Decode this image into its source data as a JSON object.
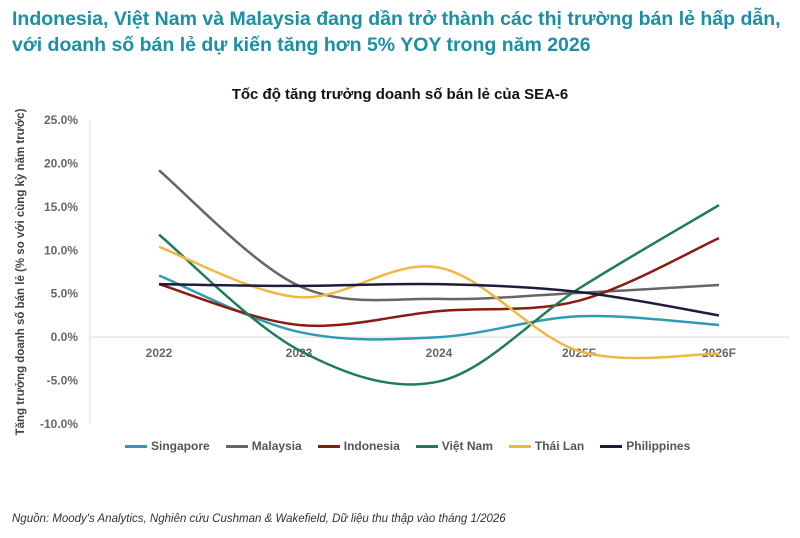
{
  "headline": "Indonesia, Việt Nam và Malaysia đang dần trở thành các thị trường bán lẻ hấp dẫn, với doanh số bán lẻ dự kiến tăng hơn 5% YOY trong năm 2026",
  "source": "Nguồn: Moody's Analytics, Nghiên cứu Cushman & Wakefield, Dữ liệu thu thập vào tháng 1/2026",
  "chart_data": {
    "type": "line",
    "title": "Tốc độ tăng trưởng doanh số bán lẻ của SEA-6",
    "ylabel": "Tăng trưởng doanh số bán lẻ (% so với cùng kỳ năm trước)",
    "xlabel": "",
    "categories": [
      "2022",
      "2023",
      "2024",
      "2025F",
      "2026F"
    ],
    "ylim": [
      -10,
      25
    ],
    "yticks": [
      "25.0%",
      "20.0%",
      "15.0%",
      "10.0%",
      "5.0%",
      "0.0%",
      "-5.0%",
      "-10.0%"
    ],
    "grid": false,
    "smooth": true,
    "legend": "bottom",
    "series": [
      {
        "name": "Singapore",
        "color": "#2e9bb5",
        "values": [
          7.1,
          0.6,
          0.0,
          2.4,
          1.4
        ]
      },
      {
        "name": "Malaysia",
        "color": "#666666",
        "values": [
          19.2,
          5.9,
          4.4,
          5.1,
          6.0
        ]
      },
      {
        "name": "Indonesia",
        "color": "#8b1a10",
        "values": [
          6.1,
          1.4,
          3.0,
          4.2,
          11.4
        ]
      },
      {
        "name": "Việt Nam",
        "color": "#1e7b5c",
        "values": [
          11.8,
          -1.5,
          -5.1,
          5.6,
          15.2
        ]
      },
      {
        "name": "Thái Lan",
        "color": "#f0b83e",
        "values": [
          10.4,
          4.6,
          8.0,
          -1.6,
          -1.9
        ]
      },
      {
        "name": "Philippines",
        "color": "#1e1b3d",
        "values": [
          6.1,
          5.9,
          6.1,
          5.2,
          2.5
        ]
      }
    ]
  }
}
